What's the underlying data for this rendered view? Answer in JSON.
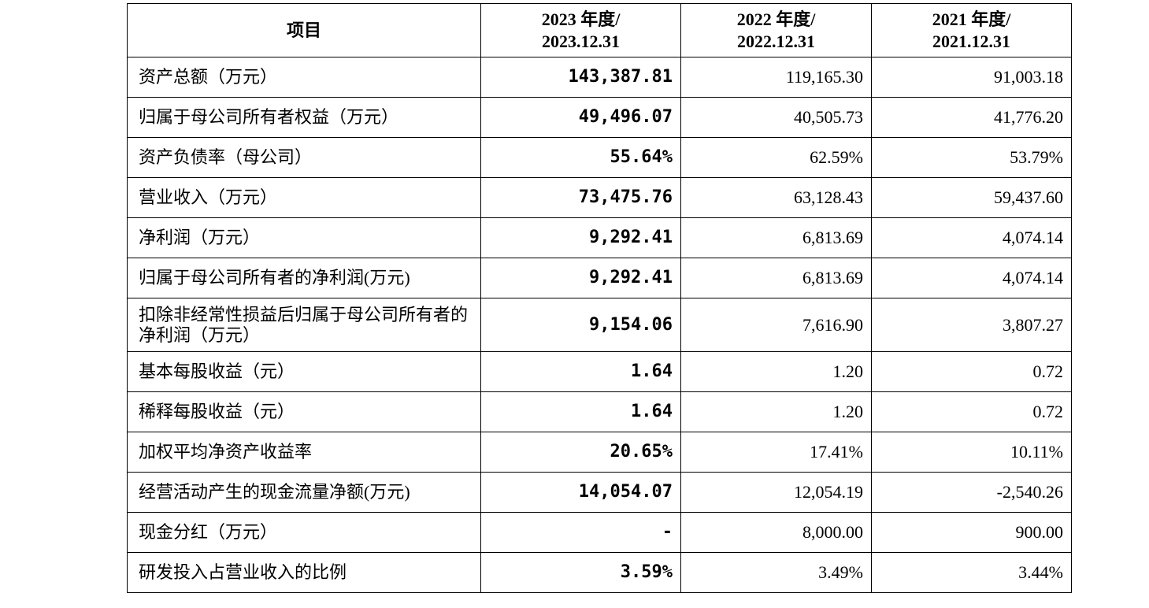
{
  "table": {
    "header": [
      [
        "项目"
      ],
      [
        "2023 年度/",
        "2023.12.31"
      ],
      [
        "2022 年度/",
        "2022.12.31"
      ],
      [
        "2021 年度/",
        "2021.12.31"
      ]
    ],
    "rows": [
      [
        "资产总额（万元）",
        "143,387.81",
        "119,165.30",
        "91,003.18"
      ],
      [
        "归属于母公司所有者权益（万元）",
        "49,496.07",
        "40,505.73",
        "41,776.20"
      ],
      [
        "资产负债率（母公司）",
        "55.64%",
        "62.59%",
        "53.79%"
      ],
      [
        "营业收入（万元）",
        "73,475.76",
        "63,128.43",
        "59,437.60"
      ],
      [
        "净利润（万元）",
        "9,292.41",
        "6,813.69",
        "4,074.14"
      ],
      [
        "归属于母公司所有者的净利润(万元)",
        "9,292.41",
        "6,813.69",
        "4,074.14"
      ],
      [
        "扣除非经常性损益后归属于母公司所有者的净利润（万元）",
        "9,154.06",
        "7,616.90",
        "3,807.27"
      ],
      [
        "基本每股收益（元）",
        "1.64",
        "1.20",
        "0.72"
      ],
      [
        "稀释每股收益（元）",
        "1.64",
        "1.20",
        "0.72"
      ],
      [
        "加权平均净资产收益率",
        "20.65%",
        "17.41%",
        "10.11%"
      ],
      [
        "经营活动产生的现金流量净额(万元)",
        "14,054.07",
        "12,054.19",
        "-2,540.26"
      ],
      [
        "现金分红（万元）",
        "-",
        "8,000.00",
        "900.00"
      ],
      [
        "研发投入占营业收入的比例",
        "3.59%",
        "3.49%",
        "3.44%"
      ]
    ]
  }
}
